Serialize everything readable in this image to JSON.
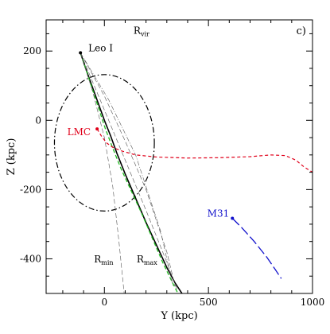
{
  "chart_data": {
    "type": "line",
    "panel_label": "c)",
    "xlabel": "Y (kpc)",
    "ylabel": "Z (kpc)",
    "xlim": [
      -280,
      1000
    ],
    "ylim": [
      -500,
      290
    ],
    "x_ticks": [
      0,
      500,
      1000
    ],
    "y_ticks": [
      200,
      0,
      -200,
      -400
    ],
    "grid": false,
    "rvir_ellipse": {
      "label": "Rvir",
      "label_main": "R",
      "label_sub": "vir",
      "center": [
        0,
        -65
      ],
      "radius_x": 240,
      "radius_y": 197
    },
    "objects": [
      {
        "name": "Leo I",
        "label": "Leo I",
        "color": "#000000",
        "position": [
          -115,
          195
        ]
      },
      {
        "name": "LMC",
        "label": "LMC",
        "color": "#e0001a",
        "position": [
          -35,
          -25
        ]
      },
      {
        "name": "M31",
        "label": "M31",
        "color": "#1010cc",
        "position": [
          615,
          -283
        ]
      }
    ],
    "series": [
      {
        "style": "solid",
        "color": "#000000",
        "x": [
          -115,
          -90,
          -60,
          -30,
          0,
          30,
          60,
          100,
          150,
          200,
          250,
          300,
          340,
          375
        ],
        "y": [
          195,
          150,
          100,
          50,
          0,
          -45,
          -95,
          -155,
          -225,
          -295,
          -360,
          -425,
          -470,
          -502
        ]
      },
      {
        "style": "dashed-green",
        "color": "#22bb22",
        "x": [
          -115,
          -85,
          -55,
          -25,
          5,
          40,
          80,
          130,
          180,
          230,
          280,
          320,
          355
        ],
        "y": [
          195,
          140,
          85,
          30,
          -25,
          -80,
          -140,
          -205,
          -270,
          -340,
          -410,
          -460,
          -502
        ]
      },
      {
        "style": "dashed-thin",
        "color": "#555555",
        "x": [
          -115,
          0,
          100,
          200,
          300,
          350
        ],
        "y": [
          195,
          30,
          -115,
          -260,
          -410,
          -490
        ]
      },
      {
        "style": "dashed-thin",
        "color": "#555555",
        "x": [
          -115,
          -55,
          0,
          40,
          70,
          95
        ],
        "y": [
          195,
          80,
          -50,
          -190,
          -350,
          -500
        ]
      },
      {
        "style": "dashed-thin",
        "color": "#555555",
        "x": [
          -115,
          0,
          100,
          200,
          300,
          340
        ],
        "y": [
          195,
          70,
          -60,
          -200,
          -380,
          -480
        ]
      },
      {
        "style": "dash-dot-thin",
        "color": "#555555",
        "x": [
          -115,
          20,
          150,
          270,
          330
        ],
        "y": [
          195,
          60,
          -100,
          -320,
          -480
        ]
      },
      {
        "style": "dashed-red",
        "color": "#e0001a",
        "x": [
          -35,
          -15,
          10,
          40,
          80,
          150,
          250,
          400,
          550,
          700,
          800,
          870,
          920,
          960,
          1000
        ],
        "y": [
          -25,
          -45,
          -65,
          -78,
          -88,
          -100,
          -106,
          -109,
          -108,
          -105,
          -100,
          -102,
          -115,
          -135,
          -150
        ]
      },
      {
        "style": "long-dash-blue",
        "color": "#1010cc",
        "x": [
          615,
          660,
          720,
          780,
          820,
          850
        ],
        "y": [
          -283,
          -310,
          -350,
          -395,
          -430,
          -457
        ]
      }
    ],
    "annotations": [
      {
        "label": "Rmin",
        "label_main": "R",
        "label_sub": "min",
        "position": [
          -50,
          -410
        ]
      },
      {
        "label": "Rmax",
        "label_main": "R",
        "label_sub": "max",
        "position": [
          155,
          -410
        ]
      }
    ]
  }
}
